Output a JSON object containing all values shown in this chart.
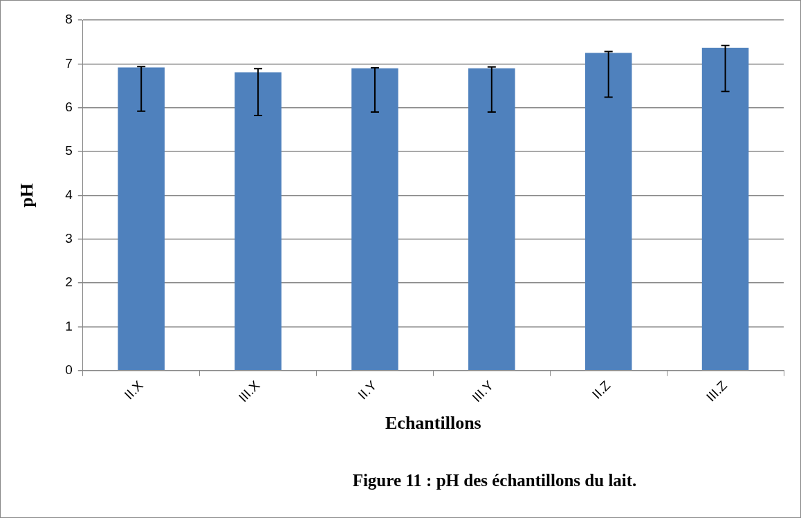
{
  "chart_data": {
    "type": "bar",
    "xlabel": "Echantillons",
    "ylabel": "pH",
    "categories": [
      "II.X",
      "III.X",
      "II.Y",
      "III.Y",
      "II.Z",
      "III.Z"
    ],
    "values": [
      6.92,
      6.81,
      6.9,
      6.9,
      7.25,
      7.37
    ],
    "errors": [
      [
        5.92,
        6.94
      ],
      [
        5.82,
        6.89
      ],
      [
        5.9,
        6.91
      ],
      [
        5.9,
        6.93
      ],
      [
        6.24,
        7.28
      ],
      [
        6.37,
        7.42
      ]
    ],
    "color": "#4f81bd",
    "ylim": [
      0,
      8
    ],
    "yticks": [
      0,
      1,
      2,
      3,
      4,
      5,
      6,
      7,
      8
    ],
    "grid": "y",
    "legend": false,
    "annotations": [
      "Figure 11 : pH des échantillons du lait."
    ]
  }
}
